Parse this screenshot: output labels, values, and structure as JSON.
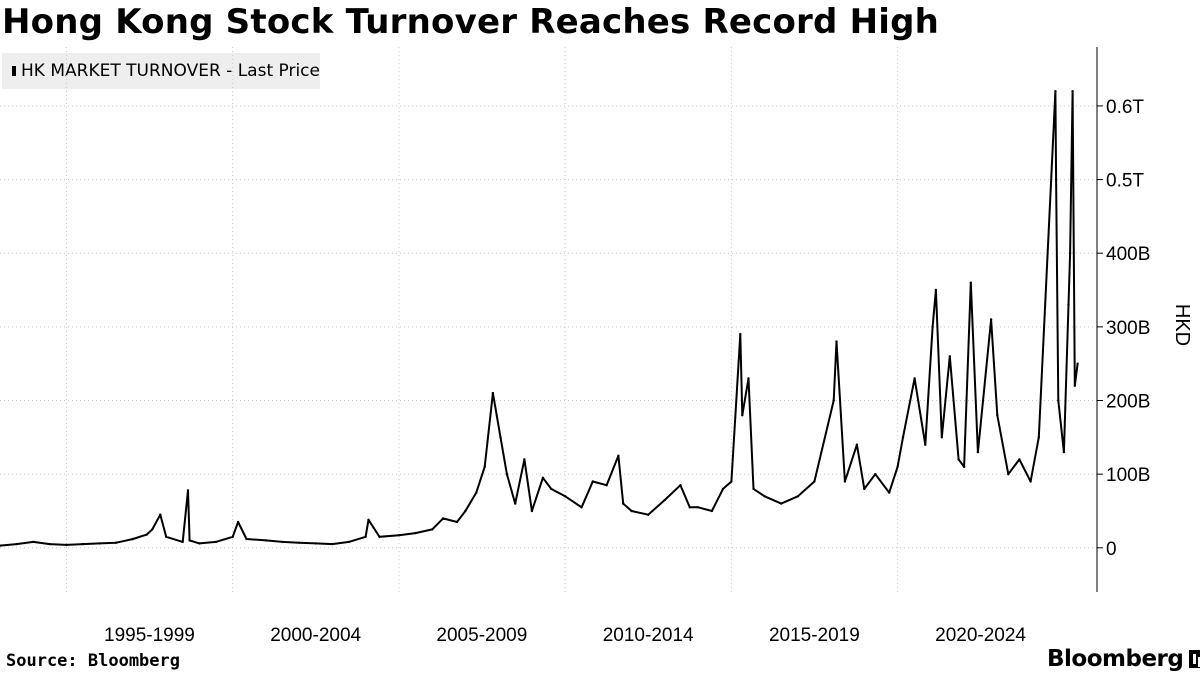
{
  "title": "Hong Kong Stock Turnover Reaches Record High",
  "source": "Source:  Bloomberg",
  "brand": "Bloomberg",
  "brand_icon": "bar-chart-icon",
  "colors": {
    "line": "#000000",
    "grid": "#c8c8c8",
    "legend_bg": "#eeeeee"
  },
  "chart_data": {
    "type": "line",
    "series": [
      {
        "name": "HK MARKET TURNOVER - Last Price"
      }
    ],
    "ylabel": "HKD",
    "ylim": [
      -60,
      680
    ],
    "y_ticks": [
      {
        "value": 0,
        "label": "0"
      },
      {
        "value": 100,
        "label": "100B"
      },
      {
        "value": 200,
        "label": "200B"
      },
      {
        "value": 300,
        "label": "300B"
      },
      {
        "value": 400,
        "label": "400B"
      },
      {
        "value": 500,
        "label": "0.5T"
      },
      {
        "value": 600,
        "label": "0.6T"
      }
    ],
    "y_unit": "billion HKD",
    "xlim": [
      "1993-01-01",
      "2025-12-31"
    ],
    "x_ticks": [
      "1995-1999",
      "2000-2004",
      "2005-2009",
      "2010-2014",
      "2015-2019",
      "2020-2024"
    ],
    "grid": true,
    "legend_position": "top-left",
    "points": [
      [
        "1993-01-01",
        3
      ],
      [
        "1993-07-01",
        5
      ],
      [
        "1994-01-01",
        8
      ],
      [
        "1994-07-01",
        5
      ],
      [
        "1995-01-01",
        4
      ],
      [
        "1995-07-01",
        5
      ],
      [
        "1996-01-01",
        6
      ],
      [
        "1996-07-01",
        7
      ],
      [
        "1997-01-01",
        12
      ],
      [
        "1997-06-01",
        18
      ],
      [
        "1997-08-01",
        25
      ],
      [
        "1997-10-28",
        45
      ],
      [
        "1998-01-01",
        15
      ],
      [
        "1998-07-01",
        8
      ],
      [
        "1998-08-28",
        78
      ],
      [
        "1998-09-15",
        10
      ],
      [
        "1999-01-01",
        6
      ],
      [
        "1999-07-01",
        8
      ],
      [
        "2000-01-01",
        15
      ],
      [
        "2000-03-01",
        35
      ],
      [
        "2000-06-01",
        12
      ],
      [
        "2001-01-01",
        10
      ],
      [
        "2001-07-01",
        8
      ],
      [
        "2002-01-01",
        7
      ],
      [
        "2002-07-01",
        6
      ],
      [
        "2003-01-01",
        5
      ],
      [
        "2003-07-01",
        8
      ],
      [
        "2004-01-01",
        15
      ],
      [
        "2004-02-01",
        38
      ],
      [
        "2004-06-01",
        15
      ],
      [
        "2005-01-01",
        17
      ],
      [
        "2005-07-01",
        20
      ],
      [
        "2006-01-01",
        25
      ],
      [
        "2006-05-01",
        40
      ],
      [
        "2006-10-01",
        35
      ],
      [
        "2007-01-01",
        50
      ],
      [
        "2007-05-01",
        75
      ],
      [
        "2007-08-01",
        110
      ],
      [
        "2007-10-30",
        210
      ],
      [
        "2008-01-22",
        150
      ],
      [
        "2008-04-01",
        100
      ],
      [
        "2008-07-01",
        60
      ],
      [
        "2008-10-10",
        120
      ],
      [
        "2009-01-01",
        50
      ],
      [
        "2009-05-01",
        95
      ],
      [
        "2009-08-01",
        80
      ],
      [
        "2010-01-01",
        70
      ],
      [
        "2010-07-01",
        55
      ],
      [
        "2010-11-01",
        90
      ],
      [
        "2011-04-01",
        85
      ],
      [
        "2011-08-09",
        125
      ],
      [
        "2011-10-01",
        60
      ],
      [
        "2012-01-01",
        50
      ],
      [
        "2012-07-01",
        45
      ],
      [
        "2013-01-01",
        65
      ],
      [
        "2013-06-20",
        85
      ],
      [
        "2013-10-01",
        55
      ],
      [
        "2014-01-01",
        55
      ],
      [
        "2014-06-01",
        50
      ],
      [
        "2014-10-01",
        80
      ],
      [
        "2015-01-01",
        90
      ],
      [
        "2015-04-09",
        290
      ],
      [
        "2015-05-01",
        180
      ],
      [
        "2015-07-08",
        230
      ],
      [
        "2015-09-01",
        80
      ],
      [
        "2016-01-01",
        70
      ],
      [
        "2016-07-01",
        60
      ],
      [
        "2017-01-01",
        70
      ],
      [
        "2017-07-01",
        90
      ],
      [
        "2018-01-29",
        200
      ],
      [
        "2018-03-01",
        280
      ],
      [
        "2018-06-01",
        90
      ],
      [
        "2018-10-11",
        140
      ],
      [
        "2019-01-01",
        80
      ],
      [
        "2019-05-01",
        100
      ],
      [
        "2019-10-01",
        75
      ],
      [
        "2020-01-01",
        110
      ],
      [
        "2020-03-01",
        150
      ],
      [
        "2020-07-06",
        230
      ],
      [
        "2020-11-01",
        140
      ],
      [
        "2021-01-20",
        300
      ],
      [
        "2021-02-25",
        350
      ],
      [
        "2021-05-01",
        150
      ],
      [
        "2021-07-28",
        260
      ],
      [
        "2021-11-01",
        120
      ],
      [
        "2022-01-01",
        110
      ],
      [
        "2022-03-15",
        360
      ],
      [
        "2022-06-01",
        130
      ],
      [
        "2022-10-24",
        310
      ],
      [
        "2023-01-01",
        180
      ],
      [
        "2023-05-01",
        100
      ],
      [
        "2023-09-01",
        120
      ],
      [
        "2024-01-01",
        90
      ],
      [
        "2024-04-01",
        150
      ],
      [
        "2024-09-30",
        620
      ],
      [
        "2024-10-08",
        500
      ],
      [
        "2024-11-01",
        200
      ],
      [
        "2025-01-01",
        130
      ],
      [
        "2025-02-21",
        330
      ],
      [
        "2025-03-10",
        400
      ],
      [
        "2025-04-07",
        620
      ],
      [
        "2025-05-01",
        220
      ],
      [
        "2025-06-01",
        250
      ]
    ]
  }
}
